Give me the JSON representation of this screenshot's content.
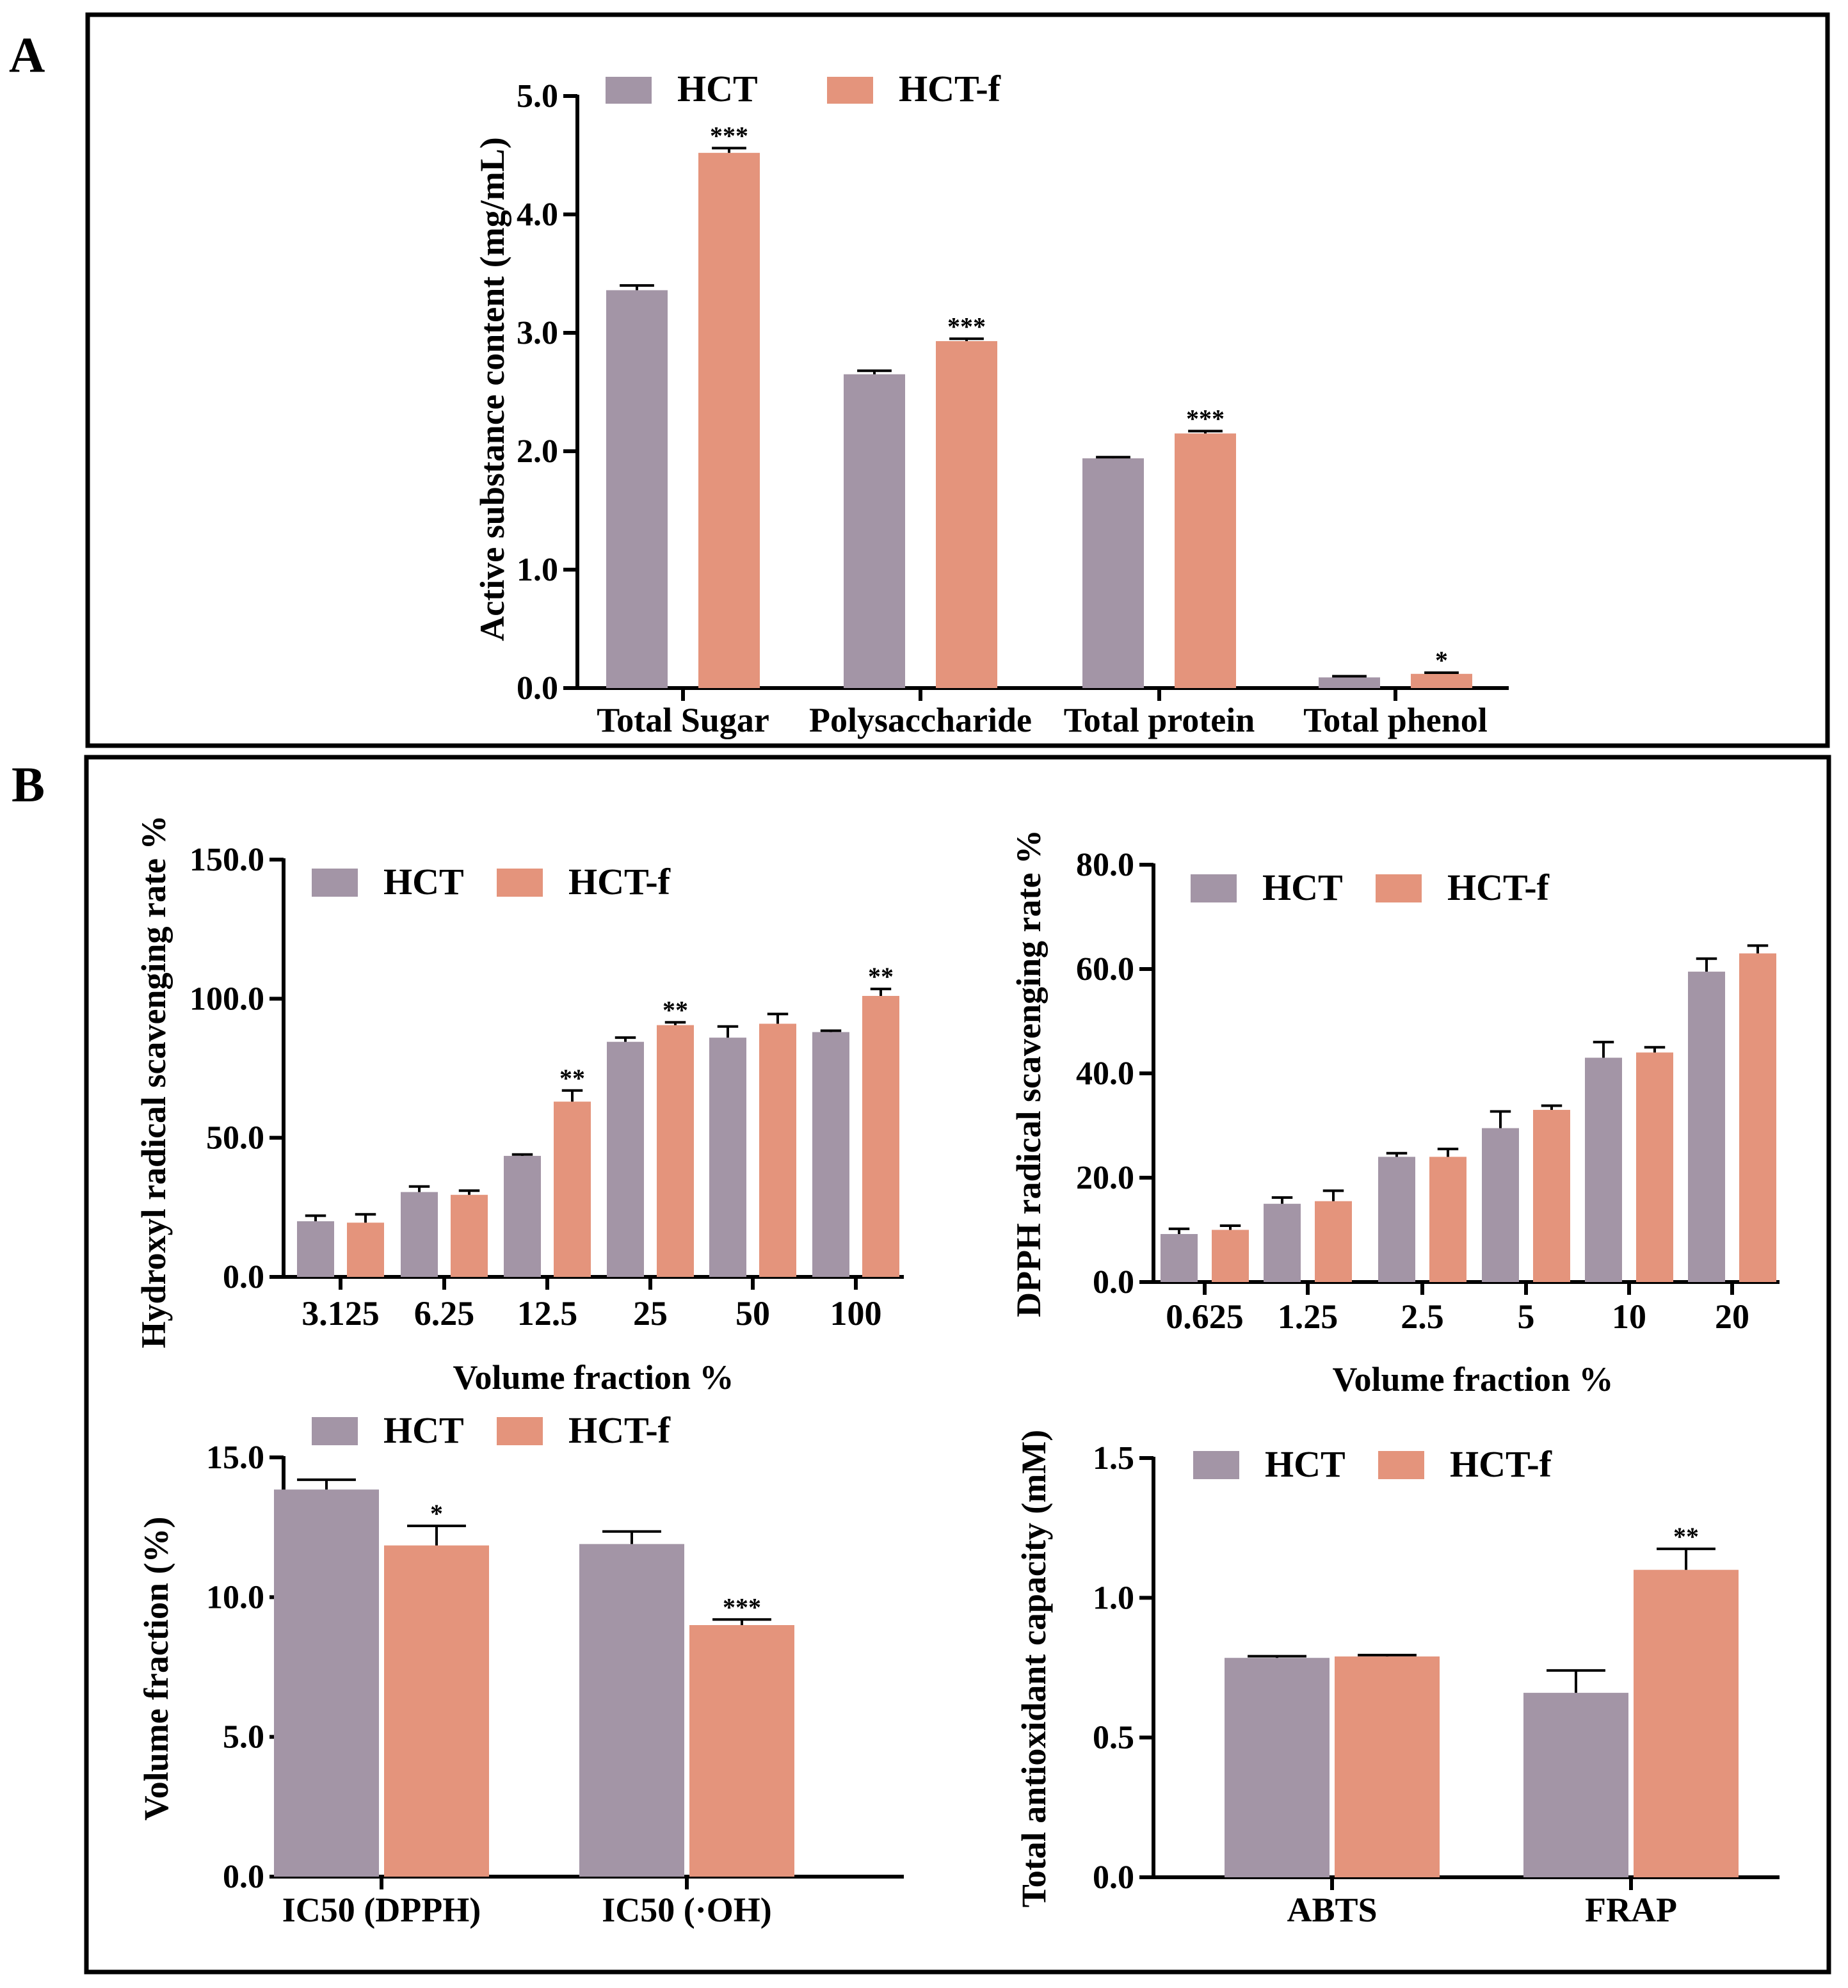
{
  "colors": {
    "HCT": "#A395A6",
    "HCT-f": "#E4947C",
    "frame": "#000000"
  },
  "panels": {
    "A": "A",
    "B": "B"
  },
  "legend": {
    "series1": "HCT",
    "series2": "HCT-f"
  },
  "chart_data": [
    {
      "id": "A",
      "type": "bar",
      "title": "",
      "ylabel": "Active substance content (mg/mL)",
      "xlabel": "",
      "ylim": [
        0,
        5
      ],
      "yticks": [
        "0.0",
        "1.0",
        "2.0",
        "3.0",
        "4.0",
        "5.0"
      ],
      "categories": [
        "Total Sugar",
        "Polysaccharide",
        "Total protein",
        "Total phenol"
      ],
      "series": [
        {
          "name": "HCT",
          "values": [
            3.36,
            2.65,
            1.94,
            0.09
          ],
          "errors": [
            0.04,
            0.03,
            0.01,
            0.01
          ]
        },
        {
          "name": "HCT-f",
          "values": [
            4.52,
            2.93,
            2.15,
            0.12
          ],
          "errors": [
            0.04,
            0.02,
            0.02,
            0.01
          ]
        }
      ],
      "significance": [
        "***",
        "***",
        "***",
        "*"
      ]
    },
    {
      "id": "B1",
      "type": "bar",
      "title": "",
      "ylabel": "Hydroxyl radical scavenging rate %",
      "xlabel": "Volume fraction %",
      "ylim": [
        0,
        150
      ],
      "yticks": [
        "0.0",
        "50.0",
        "100.0",
        "150.0"
      ],
      "categories": [
        "3.125",
        "6.25",
        "12.5",
        "25",
        "50",
        "100"
      ],
      "series": [
        {
          "name": "HCT",
          "values": [
            20,
            30.5,
            43.5,
            84.5,
            86,
            88
          ],
          "errors": [
            2,
            2,
            0.5,
            1.5,
            4,
            0.5
          ]
        },
        {
          "name": "HCT-f",
          "values": [
            19.5,
            29.5,
            63,
            90.5,
            91,
            101
          ],
          "errors": [
            3,
            1.5,
            4,
            1,
            3.5,
            2.5
          ]
        }
      ],
      "significance": [
        "",
        "",
        "**",
        "**",
        "",
        "**"
      ]
    },
    {
      "id": "B2",
      "type": "bar",
      "title": "",
      "ylabel": "DPPH radical scavenging rate %",
      "xlabel": "Volume fraction %",
      "ylim": [
        0,
        80
      ],
      "yticks": [
        "0.0",
        "20.0",
        "40.0",
        "60.0",
        "80.0"
      ],
      "categories": [
        "0.625",
        "1.25",
        "2.5",
        "5",
        "10",
        "20"
      ],
      "series": [
        {
          "name": "HCT",
          "values": [
            9.2,
            15,
            24,
            29.5,
            43,
            59.5
          ],
          "errors": [
            1,
            1.2,
            0.7,
            3.2,
            3,
            2.5
          ]
        },
        {
          "name": "HCT-f",
          "values": [
            10,
            15.5,
            24,
            33,
            44,
            63
          ],
          "errors": [
            0.8,
            2,
            1.5,
            0.8,
            1,
            1.5
          ]
        }
      ],
      "significance": [
        "",
        "",
        "",
        "",
        "",
        ""
      ]
    },
    {
      "id": "B3",
      "type": "bar",
      "title": "",
      "ylabel": "Volume fraction (%)",
      "xlabel": "",
      "ylim": [
        0,
        15
      ],
      "yticks": [
        "0.0",
        "5.0",
        "10.0",
        "15.0"
      ],
      "categories": [
        "IC50 (DPPH)",
        "IC50 (·OH)"
      ],
      "series": [
        {
          "name": "HCT",
          "values": [
            13.85,
            11.9
          ],
          "errors": [
            0.35,
            0.45
          ]
        },
        {
          "name": "HCT-f",
          "values": [
            11.85,
            9.0
          ],
          "errors": [
            0.7,
            0.2
          ]
        }
      ],
      "significance": [
        "*",
        "***"
      ]
    },
    {
      "id": "B4",
      "type": "bar",
      "title": "",
      "ylabel": "Total antioxidant capacity (mM)",
      "xlabel": "",
      "ylim": [
        0,
        1.5
      ],
      "yticks": [
        "0.0",
        "0.5",
        "1.0",
        "1.5"
      ],
      "categories": [
        "ABTS",
        "FRAP"
      ],
      "series": [
        {
          "name": "HCT",
          "values": [
            0.785,
            0.66
          ],
          "errors": [
            0.006,
            0.08
          ]
        },
        {
          "name": "HCT-f",
          "values": [
            0.79,
            1.1
          ],
          "errors": [
            0.005,
            0.075
          ]
        }
      ],
      "significance": [
        "",
        "**"
      ]
    }
  ]
}
